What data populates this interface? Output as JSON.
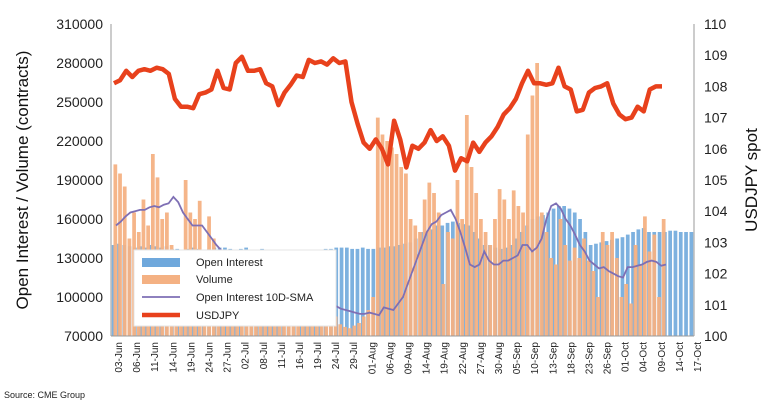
{
  "source": "Source: CME Group",
  "chart_data": {
    "type": "bar+line",
    "ylabel_left": "Open Interest / Volume (contracts)",
    "ylabel_right": "USDJPY spot",
    "ylim_left": [
      70000,
      310000
    ],
    "ylim_right": [
      100,
      110
    ],
    "yticks_left": [
      "70000",
      "100000",
      "130000",
      "160000",
      "190000",
      "220000",
      "250000",
      "280000",
      "310000"
    ],
    "yticks_right": [
      "100",
      "101",
      "102",
      "103",
      "104",
      "105",
      "106",
      "107",
      "108",
      "109",
      "110"
    ],
    "xticks": [
      "03-Jun",
      "06-Jun",
      "11-Jun",
      "14-Jun",
      "19-Jun",
      "24-Jun",
      "27-Jun",
      "02-Jul",
      "08-Jul",
      "11-Jul",
      "16-Jul",
      "19-Jul",
      "24-Jul",
      "29-Jul",
      "01-Aug",
      "06-Aug",
      "09-Aug",
      "14-Aug",
      "19-Aug",
      "22-Aug",
      "27-Aug",
      "30-Aug",
      "05-Sep",
      "10-Sep",
      "13-Sep",
      "18-Sep",
      "23-Sep",
      "26-Sep",
      "01-Oct",
      "04-Oct",
      "09-Oct",
      "14-Oct",
      "17-Oct"
    ],
    "legend_position": "bottom-left",
    "series": [
      {
        "name": "Open Interest",
        "type": "bar",
        "color": "#6fa8dc",
        "values": [
          140000,
          141000,
          140000,
          139000,
          138000,
          139000,
          138000,
          140000,
          139000,
          138000,
          139000,
          137000,
          137000,
          136000,
          137000,
          138000,
          137000,
          136000,
          137000,
          138000,
          138000,
          138000,
          137000,
          136000,
          137000,
          138000,
          136000,
          136000,
          137000,
          136000,
          135000,
          135000,
          134000,
          134000,
          134000,
          134000,
          135000,
          135000,
          136000,
          136000,
          137000,
          137000,
          138000,
          138000,
          138000,
          137000,
          137000,
          138000,
          137000,
          137000,
          138000,
          138000,
          139000,
          139000,
          140000,
          141000,
          142000,
          145000,
          150000,
          150000,
          152000,
          155000,
          155000,
          157000,
          158000,
          157000,
          156000,
          155000,
          150000,
          145000,
          140000,
          140000,
          138000,
          137000,
          138000,
          140000,
          145000,
          150000,
          155000,
          160000,
          162000,
          163000,
          165000,
          168000,
          170000,
          170000,
          168000,
          165000,
          160000,
          150000,
          140000,
          141000,
          142000,
          143000,
          144000,
          145000,
          146000,
          148000,
          150000,
          152000,
          153000,
          150000,
          150000,
          150000,
          150000,
          151000,
          151000,
          150000,
          150000,
          150000
        ]
      },
      {
        "name": "Volume",
        "type": "bar",
        "color": "#f4b183",
        "values": [
          202000,
          195000,
          185000,
          145000,
          165000,
          150000,
          175000,
          155000,
          210000,
          192000,
          160000,
          165000,
          140000,
          130000,
          120000,
          190000,
          165000,
          160000,
          174000,
          130000,
          162000,
          145000,
          120000,
          110000,
          108000,
          125000,
          112000,
          100000,
          115000,
          110000,
          98000,
          95000,
          102000,
          96000,
          90000,
          95000,
          98000,
          92000,
          88000,
          86000,
          84000,
          88000,
          82000,
          86000,
          84000,
          80000,
          82000,
          85000,
          79000,
          77000,
          76000,
          78000,
          80000,
          85000,
          90000,
          100000,
          238000,
          225000,
          220000,
          215000,
          210000,
          200000,
          195000,
          160000,
          155000,
          150000,
          175000,
          188000,
          180000,
          165000,
          110000,
          150000,
          145000,
          190000,
          160000,
          240000,
          200000,
          180000,
          160000,
          150000,
          140000,
          160000,
          183000,
          175000,
          160000,
          182000,
          170000,
          165000,
          225000,
          255000,
          280000,
          165000,
          150000,
          130000,
          125000,
          160000,
          140000,
          128000,
          138000,
          130000,
          145000,
          128000,
          120000,
          100000,
          150000,
          140000,
          150000,
          130000,
          100000,
          110000,
          95000,
          140000,
          125000,
          162000,
          135000,
          148000,
          100000,
          160000
        ]
      },
      {
        "name": "Open Interest 10D-SMA",
        "type": "line",
        "color": "#7e6fb4",
        "values": [
          155000,
          158000,
          162000,
          165000,
          166000,
          167000,
          167000,
          169000,
          170000,
          169000,
          171000,
          172000,
          177000,
          173000,
          165000,
          160000,
          155000,
          155000,
          155000,
          150000,
          145000,
          140000,
          136000,
          133000,
          131000,
          134000,
          127000,
          123000,
          126000,
          124000,
          118000,
          115000,
          114000,
          112000,
          110000,
          106000,
          104000,
          100000,
          98000,
          97000,
          95000,
          96000,
          94000,
          93000,
          92000,
          92000,
          93000,
          91000,
          90000,
          89000,
          88000,
          87000,
          87000,
          88000,
          87000,
          86000,
          92000,
          91000,
          90000,
          95000,
          100000,
          110000,
          120000,
          130000,
          140000,
          150000,
          156000,
          158000,
          163000,
          165000,
          167000,
          160000,
          150000,
          138000,
          125000,
          123000,
          125000,
          135000,
          128000,
          125000,
          125000,
          128000,
          128000,
          130000,
          132000,
          140000,
          140000,
          135000,
          138000,
          145000,
          160000,
          170000,
          172000,
          168000,
          160000,
          155000,
          148000,
          140000,
          135000,
          128000,
          125000,
          122000,
          123000,
          120000,
          118000,
          116000,
          115000,
          123000,
          123000,
          124000,
          125000,
          127000,
          128000,
          127000,
          124000,
          125000
        ]
      },
      {
        "name": "USDJPY",
        "type": "line",
        "color": "#e8411c",
        "axis": "right",
        "values": [
          108.1,
          108.2,
          108.5,
          108.3,
          108.5,
          108.55,
          108.5,
          108.6,
          108.55,
          108.4,
          107.6,
          107.35,
          107.35,
          107.3,
          107.75,
          107.8,
          107.9,
          108.5,
          107.95,
          107.9,
          108.75,
          108.95,
          108.5,
          108.5,
          108.55,
          108.1,
          108.0,
          107.4,
          107.8,
          108.05,
          108.35,
          108.3,
          108.85,
          108.75,
          108.8,
          108.7,
          108.9,
          108.75,
          108.8,
          107.5,
          106.8,
          106.2,
          106.0,
          106.3,
          106.0,
          105.5,
          106.9,
          106.3,
          105.4,
          106.1,
          106.0,
          106.2,
          106.6,
          106.25,
          106.4,
          106.1,
          105.3,
          105.7,
          105.6,
          106.2,
          105.9,
          106.2,
          106.4,
          106.7,
          107.1,
          107.3,
          107.6,
          108.1,
          108.5,
          108.1,
          108.1,
          108.05,
          108.1,
          108.6,
          108.0,
          107.9,
          107.2,
          107.25,
          107.8,
          107.95,
          108.0,
          108.1,
          107.45,
          107.1,
          106.95,
          107.0,
          107.35,
          107.2,
          107.9,
          108.0,
          108.0
        ]
      }
    ]
  }
}
